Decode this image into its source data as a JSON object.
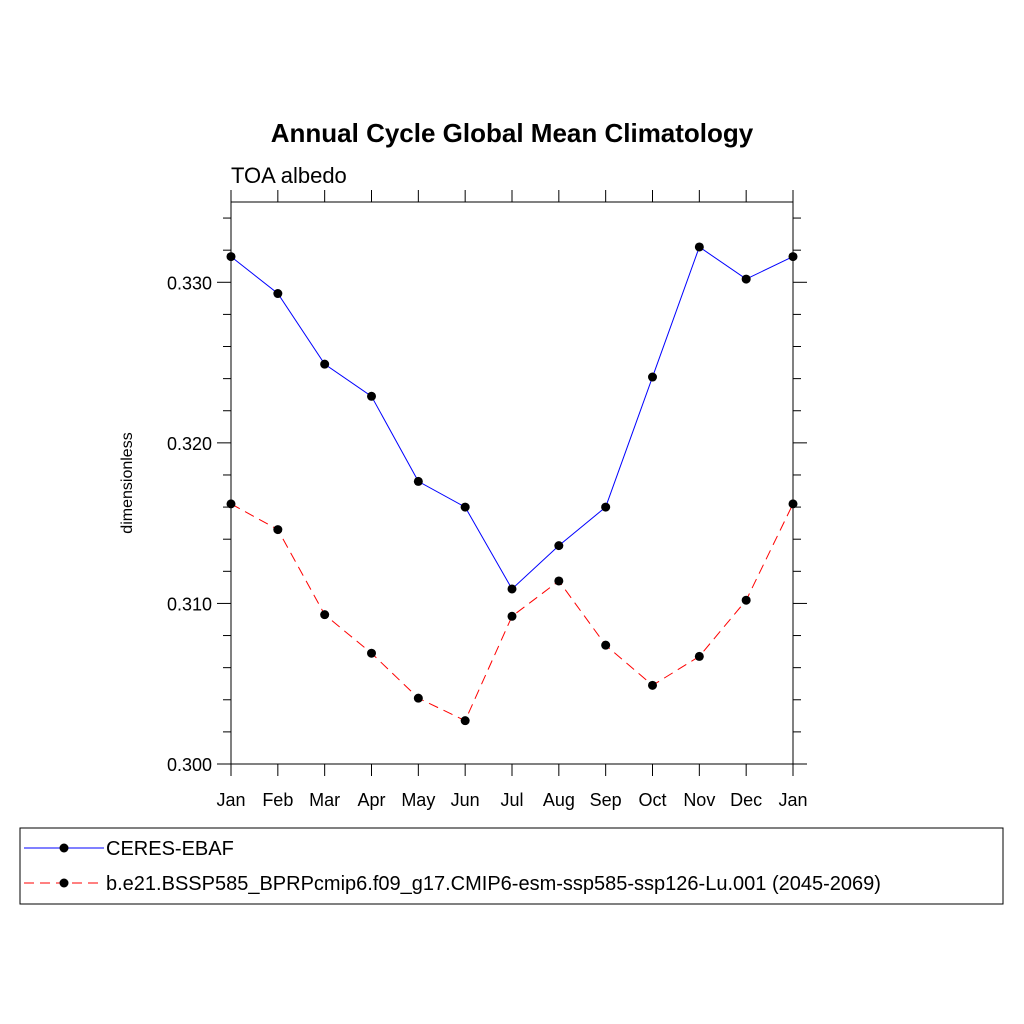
{
  "chart_data": {
    "type": "line",
    "title": "Annual Cycle Global Mean Climatology",
    "subtitle": "TOA albedo",
    "xlabel": "",
    "ylabel": "dimensionless",
    "categories": [
      "Jan",
      "Feb",
      "Mar",
      "Apr",
      "May",
      "Jun",
      "Jul",
      "Aug",
      "Sep",
      "Oct",
      "Nov",
      "Dec",
      "Jan"
    ],
    "ylim": [
      0.3,
      0.335
    ],
    "yticks": [
      "0.300",
      "0.310",
      "0.320",
      "0.330"
    ],
    "ytick_values": [
      0.3,
      0.31,
      0.32,
      0.33
    ],
    "grid": false,
    "legend_position": "bottom",
    "series": [
      {
        "name": "CERES-EBAF",
        "color": "#0000ff",
        "dash": "solid",
        "values": [
          0.3316,
          0.3293,
          0.3249,
          0.3229,
          0.3176,
          0.316,
          0.3109,
          0.3136,
          0.316,
          0.3241,
          0.3322,
          0.3302,
          0.3316
        ]
      },
      {
        "name": "b.e21.BSSP585_BPRPcmip6.f09_g17.CMIP6-esm-ssp585-ssp126-Lu.001 (2045-2069)",
        "color": "#ff0000",
        "dash": "dashed",
        "values": [
          0.3162,
          0.3146,
          0.3093,
          0.3069,
          0.3041,
          0.3027,
          0.3092,
          0.3114,
          0.3074,
          0.3049,
          0.3067,
          0.3102,
          0.3162
        ]
      }
    ]
  }
}
